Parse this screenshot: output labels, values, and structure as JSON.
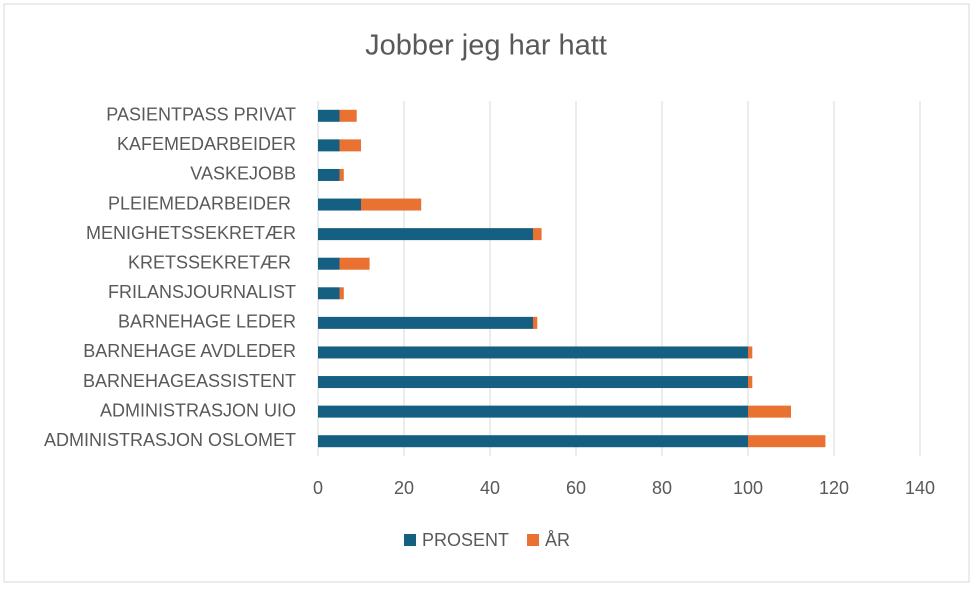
{
  "chart_data": {
    "type": "stacked-bar-horizontal",
    "title": "Jobber jeg har hatt",
    "categories": [
      "ADMINISTRASJON OSLOMET",
      "ADMINISTRASJON UIO",
      "BARNEHAGEASSISTENT",
      "BARNEHAGE AVDLEDER",
      "BARNEHAGE LEDER",
      "FRILANSJOURNALIST",
      "KRETSSEKRETÆR ",
      "MENIGHETSSEKRETÆR",
      "PLEIEMEDARBEIDER ",
      "VASKEJOBB",
      "KAFEMEDARBEIDER",
      "PASIENTPASS PRIVAT"
    ],
    "series": [
      {
        "name": "PROSENT",
        "color": "#156082",
        "values": [
          100,
          100,
          100,
          100,
          50,
          5,
          5,
          50,
          10,
          5,
          5,
          5
        ]
      },
      {
        "name": "ÅR",
        "color": "#e97132",
        "values": [
          18,
          10,
          1,
          1,
          1,
          1,
          7,
          2,
          14,
          1,
          5,
          4
        ]
      }
    ],
    "xlim": [
      0,
      140
    ],
    "xticks": [
      0,
      20,
      40,
      60,
      80,
      100,
      120,
      140
    ],
    "grid": true,
    "legend": "bottom"
  }
}
